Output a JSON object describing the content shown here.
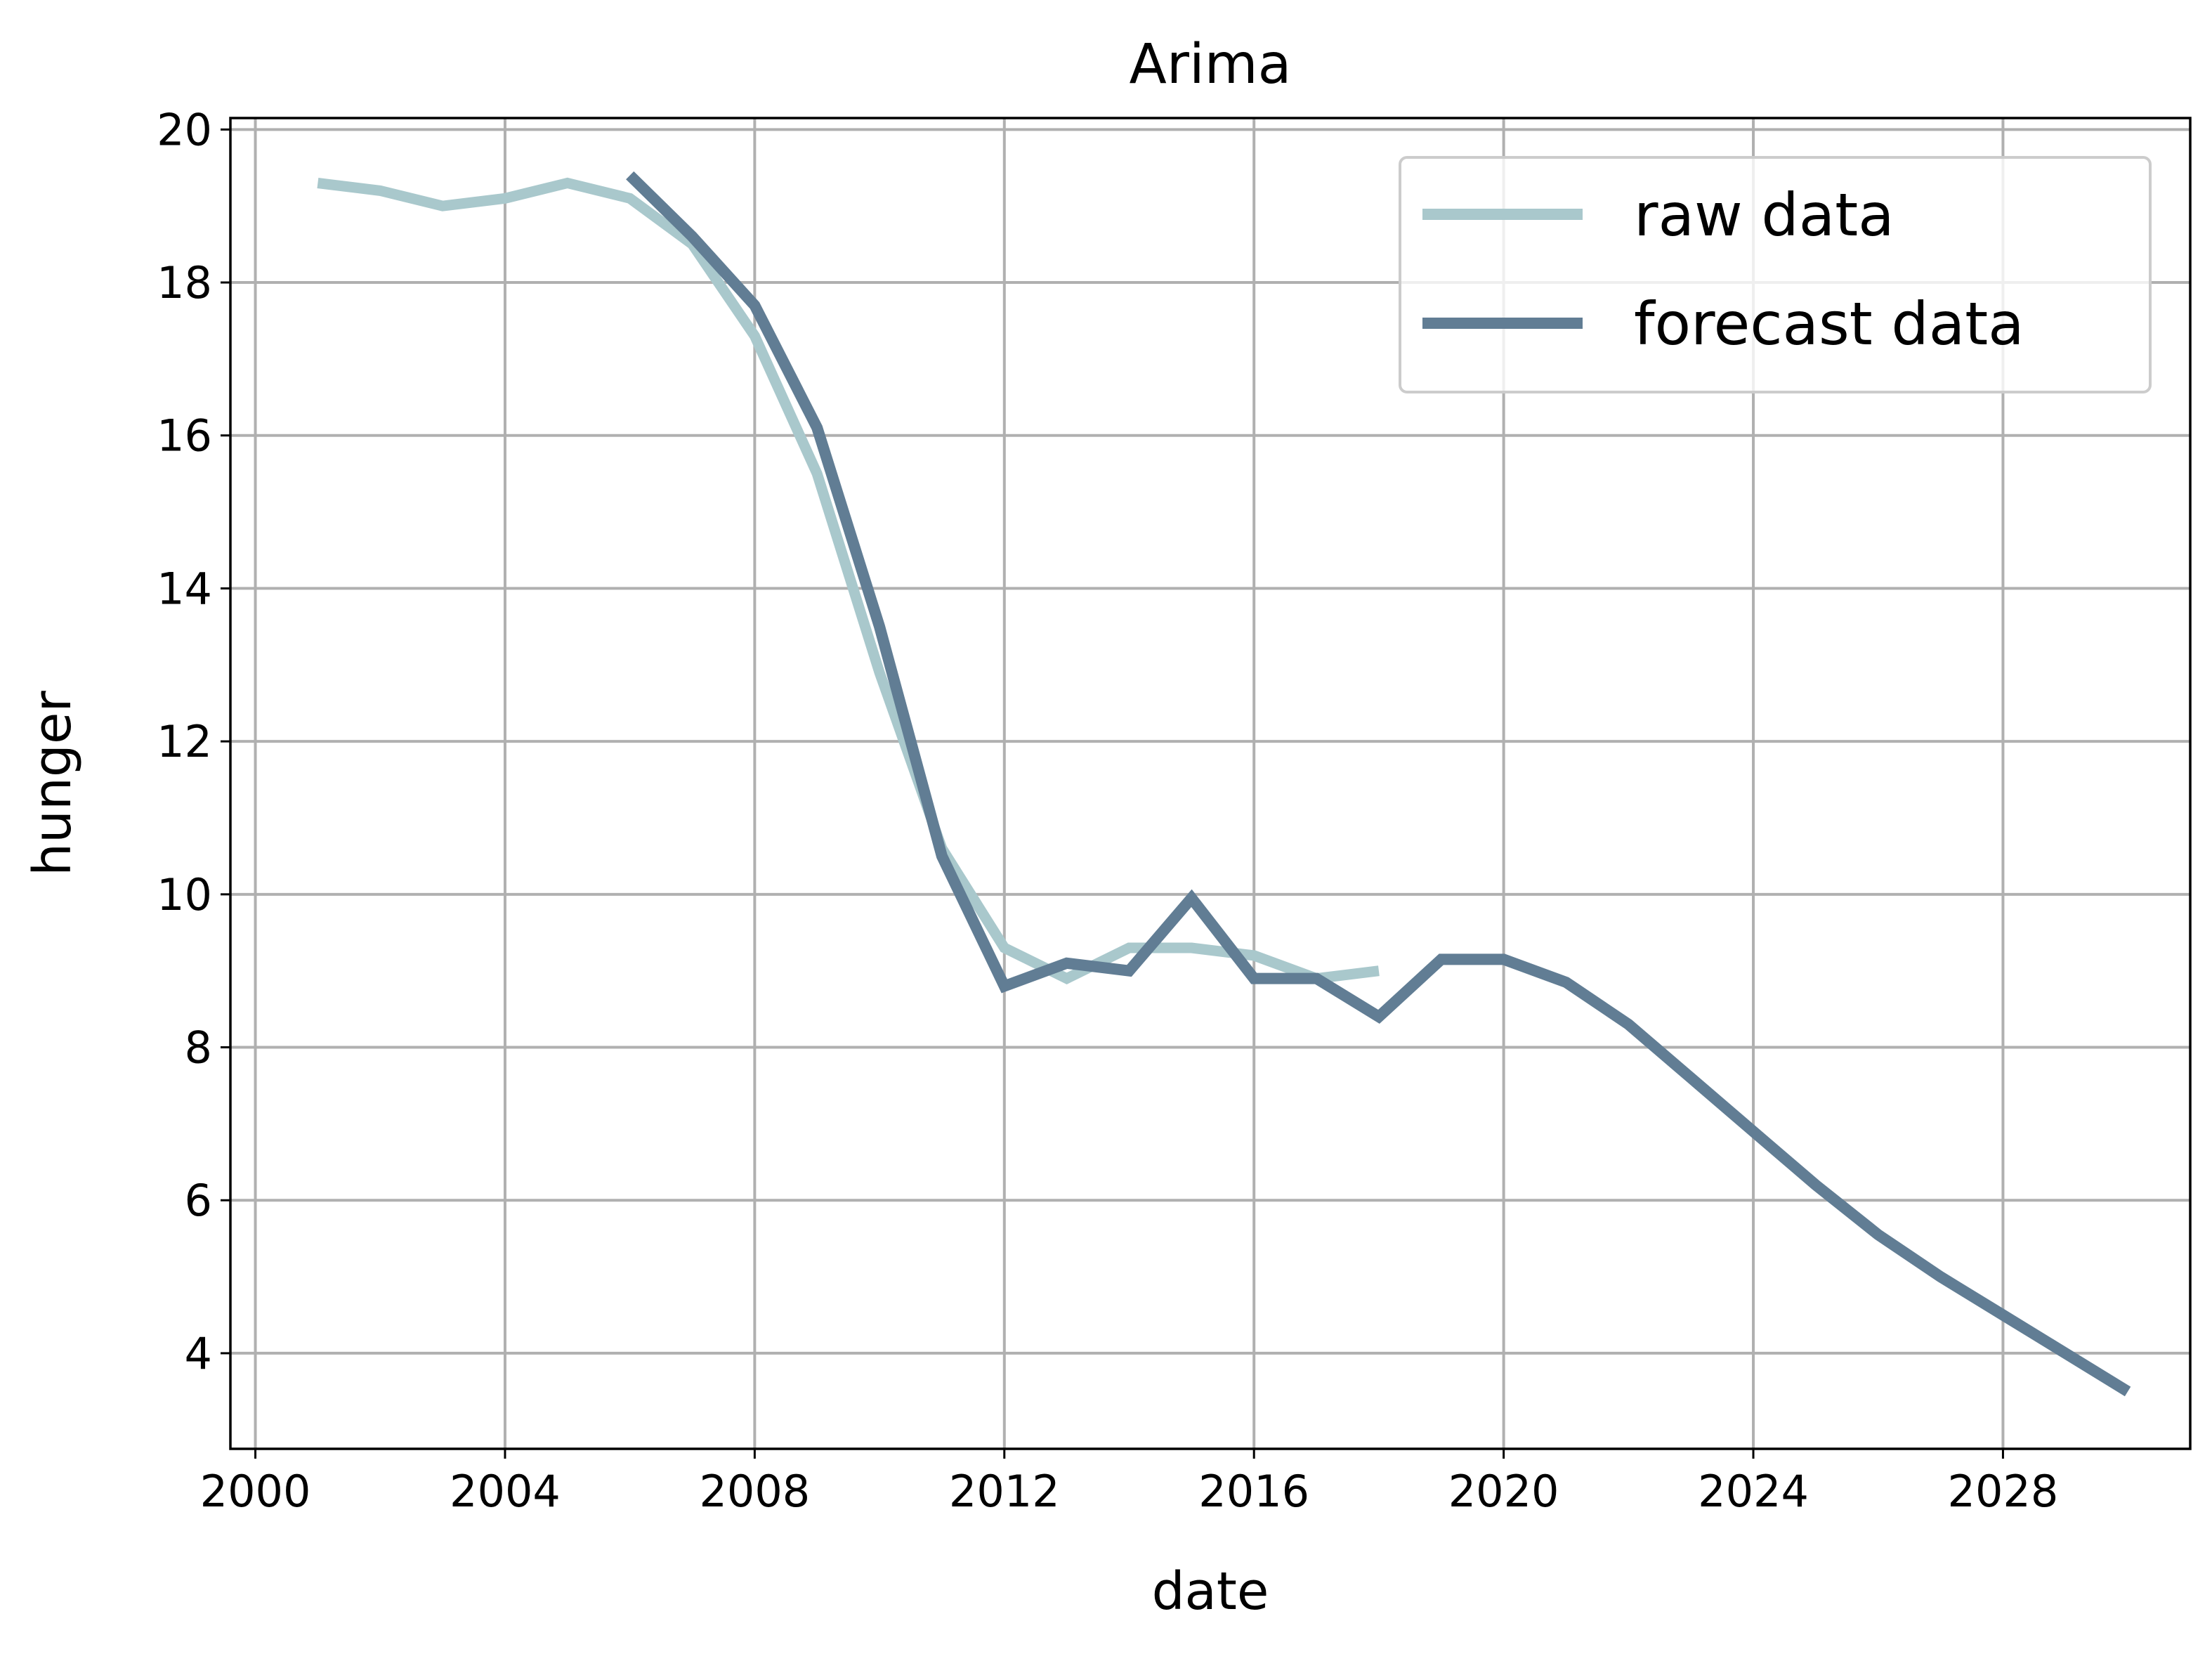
{
  "chart_data": {
    "type": "line",
    "title": "Arima",
    "xlabel": "date",
    "ylabel": "hunger",
    "xlim": [
      1999.6,
      2031.0
    ],
    "ylim": [
      2.75,
      20.15
    ],
    "grid": true,
    "legend_position": "top-right",
    "x_ticks": [
      "2000",
      "2004",
      "2008",
      "2012",
      "2016",
      "2020",
      "2024",
      "2028"
    ],
    "y_ticks": [
      "4",
      "6",
      "8",
      "10",
      "12",
      "14",
      "16",
      "18",
      "20"
    ],
    "series": [
      {
        "name": "raw data",
        "color": "#a9c8cc",
        "x": [
          2001,
          2002,
          2003,
          2004,
          2005,
          2006,
          2007,
          2008,
          2009,
          2010,
          2011,
          2012,
          2013,
          2014,
          2015,
          2016,
          2017,
          2018
        ],
        "y": [
          19.3,
          19.2,
          19.0,
          19.1,
          19.3,
          19.1,
          18.5,
          17.3,
          15.5,
          12.9,
          10.6,
          9.3,
          8.9,
          9.3,
          9.3,
          9.2,
          8.9,
          9.0
        ]
      },
      {
        "name": "forecast data",
        "color": "#617d94",
        "x": [
          2006,
          2007,
          2008,
          2009,
          2010,
          2011,
          2012,
          2013,
          2014,
          2015,
          2016,
          2017,
          2018,
          2019,
          2020,
          2021,
          2022,
          2023,
          2024,
          2025,
          2026,
          2027,
          2028,
          2029,
          2030
        ],
        "y": [
          19.4,
          18.6,
          17.7,
          16.1,
          13.5,
          10.5,
          8.8,
          9.1,
          9.0,
          9.95,
          8.9,
          8.9,
          8.4,
          9.15,
          9.15,
          8.85,
          8.3,
          7.6,
          6.9,
          6.2,
          5.55,
          5.0,
          4.5,
          4.0,
          3.5
        ]
      }
    ]
  }
}
